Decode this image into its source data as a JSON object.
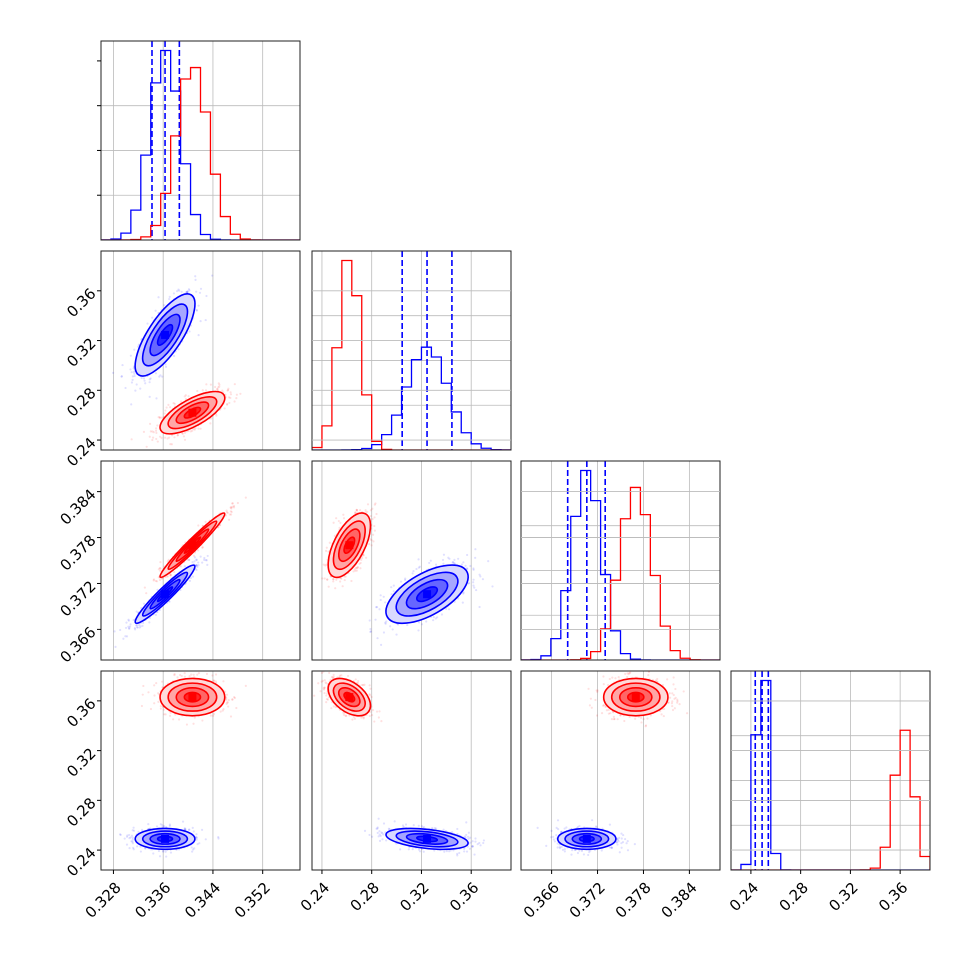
{
  "chart_data": {
    "type": "corner",
    "colors": {
      "series_a": "#0000ff",
      "series_b": "#ff0000"
    },
    "grid": true,
    "parameters": [
      {
        "range": [
          0.326,
          0.358
        ],
        "ticks": [
          "0.328",
          "0.336",
          "0.344",
          "0.352"
        ],
        "tick_values": [
          0.328,
          0.336,
          0.344,
          0.352
        ]
      },
      {
        "range": [
          0.232,
          0.392
        ],
        "ticks": [
          "0.24",
          "0.28",
          "0.32",
          "0.36"
        ],
        "tick_values": [
          0.24,
          0.28,
          0.32,
          0.36
        ]
      },
      {
        "range": [
          0.362,
          0.388
        ],
        "ticks": [
          "0.366",
          "0.372",
          "0.378",
          "0.384"
        ],
        "tick_values": [
          0.366,
          0.372,
          0.378,
          0.384
        ]
      },
      {
        "range": [
          0.224,
          0.384
        ],
        "ticks": [
          "0.24",
          "0.28",
          "0.32",
          "0.36"
        ],
        "tick_values": [
          0.24,
          0.28,
          0.32,
          0.36
        ]
      }
    ],
    "series": [
      {
        "color": "#0000ff",
        "means": [
          0.3363,
          0.3245,
          0.3706,
          0.249
        ],
        "sds": [
          0.0024,
          0.0165,
          0.0019,
          0.0042
        ],
        "corr": [
          [
            1,
            0.75,
            0.95,
            0
          ],
          [
            0.75,
            1,
            0.6,
            -0.4
          ],
          [
            0.95,
            0.6,
            1,
            0
          ],
          [
            0,
            -0.4,
            0,
            1
          ]
        ],
        "quantiles": [
          [
            0.3342,
            0.3363,
            0.3386
          ],
          [
            0.3045,
            0.3245,
            0.3445
          ],
          [
            0.3681,
            0.3706,
            0.373
          ],
          [
            0.2435,
            0.249,
            0.254
          ]
        ]
      },
      {
        "color": "#ff0000",
        "means": [
          0.3407,
          0.262,
          0.377,
          0.363
        ],
        "sds": [
          0.0026,
          0.0085,
          0.0021,
          0.0075
        ],
        "corr": [
          [
            1,
            0.7,
            0.97,
            0
          ],
          [
            0.7,
            1,
            0.6,
            -0.45
          ],
          [
            0.97,
            0.6,
            1,
            0
          ],
          [
            0,
            -0.45,
            0,
            1
          ]
        ],
        "quantiles": []
      }
    ]
  }
}
